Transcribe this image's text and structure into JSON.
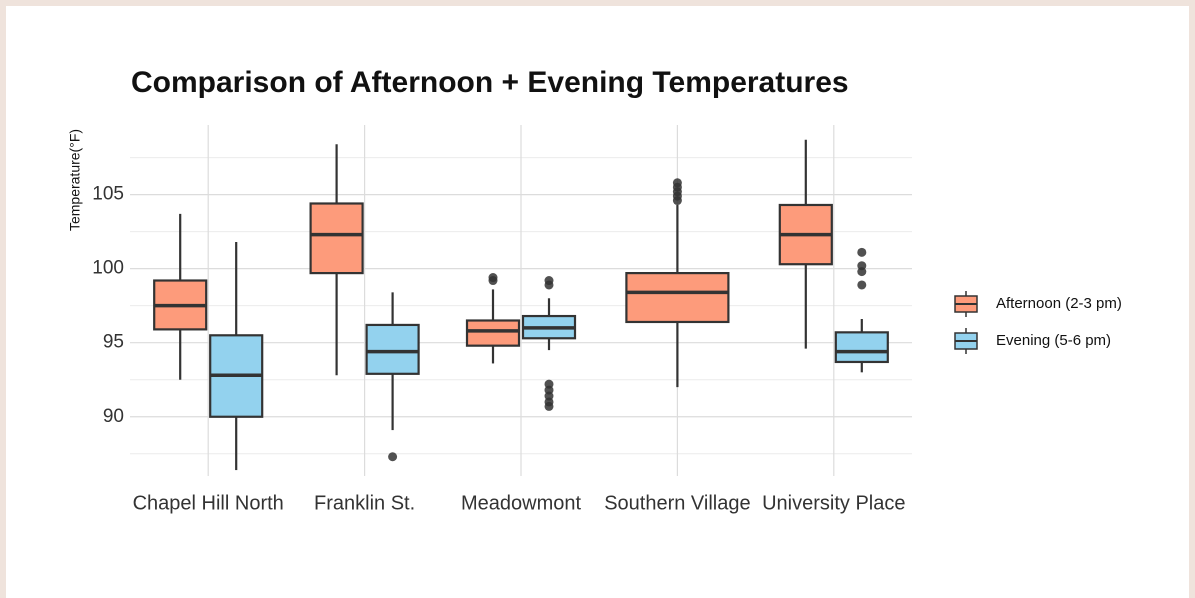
{
  "chart_data": {
    "type": "boxplot",
    "title": "Comparison of Afternoon + Evening Temperatures",
    "y_label": "Temperature(°F)",
    "categories": [
      "Chapel Hill North",
      "Franklin St.",
      "Meadowmont",
      "Southern Village",
      "University Place"
    ],
    "ylim": [
      86.0,
      109.7
    ],
    "yticks": [
      90,
      95,
      100,
      105
    ],
    "y_minor_ticks": [
      87.5,
      92.5,
      97.5,
      102.5,
      107.5
    ],
    "grid": true,
    "legend": "right",
    "series": [
      {
        "name": "Afternoon (2-3 pm)",
        "color": "#fd9b7b",
        "boxes": [
          {
            "min": 92.5,
            "q1": 95.9,
            "median": 97.5,
            "q3": 99.2,
            "max": 103.7,
            "outliers": []
          },
          {
            "min": 92.8,
            "q1": 99.7,
            "median": 102.3,
            "q3": 104.4,
            "max": 108.4,
            "outliers": []
          },
          {
            "min": 93.6,
            "q1": 94.8,
            "median": 95.8,
            "q3": 96.5,
            "max": 98.6,
            "outliers": [
              99.2,
              99.4
            ]
          },
          {
            "min": 92.0,
            "q1": 96.4,
            "median": 98.4,
            "q3": 99.7,
            "max": 104.3,
            "outliers": [
              104.6,
              104.9,
              105.2,
              105.5,
              105.8
            ]
          },
          {
            "min": 94.6,
            "q1": 100.3,
            "median": 102.3,
            "q3": 104.3,
            "max": 108.7,
            "outliers": []
          }
        ]
      },
      {
        "name": "Evening (5-6 pm)",
        "color": "#93d2ee",
        "boxes": [
          {
            "min": 86.4,
            "q1": 90.0,
            "median": 92.8,
            "q3": 95.5,
            "max": 101.8,
            "outliers": []
          },
          {
            "min": 89.1,
            "q1": 92.9,
            "median": 94.4,
            "q3": 96.2,
            "max": 98.4,
            "outliers": [
              87.3
            ]
          },
          {
            "min": 94.5,
            "q1": 95.3,
            "median": 96.0,
            "q3": 96.8,
            "max": 98.0,
            "outliers": [
              98.9,
              99.2,
              92.2,
              91.8,
              91.4,
              91.0,
              90.7
            ]
          },
          null,
          {
            "min": 93.0,
            "q1": 93.7,
            "median": 94.4,
            "q3": 95.7,
            "max": 96.6,
            "outliers": [
              98.9,
              99.8,
              100.2,
              101.1
            ]
          }
        ]
      }
    ]
  }
}
